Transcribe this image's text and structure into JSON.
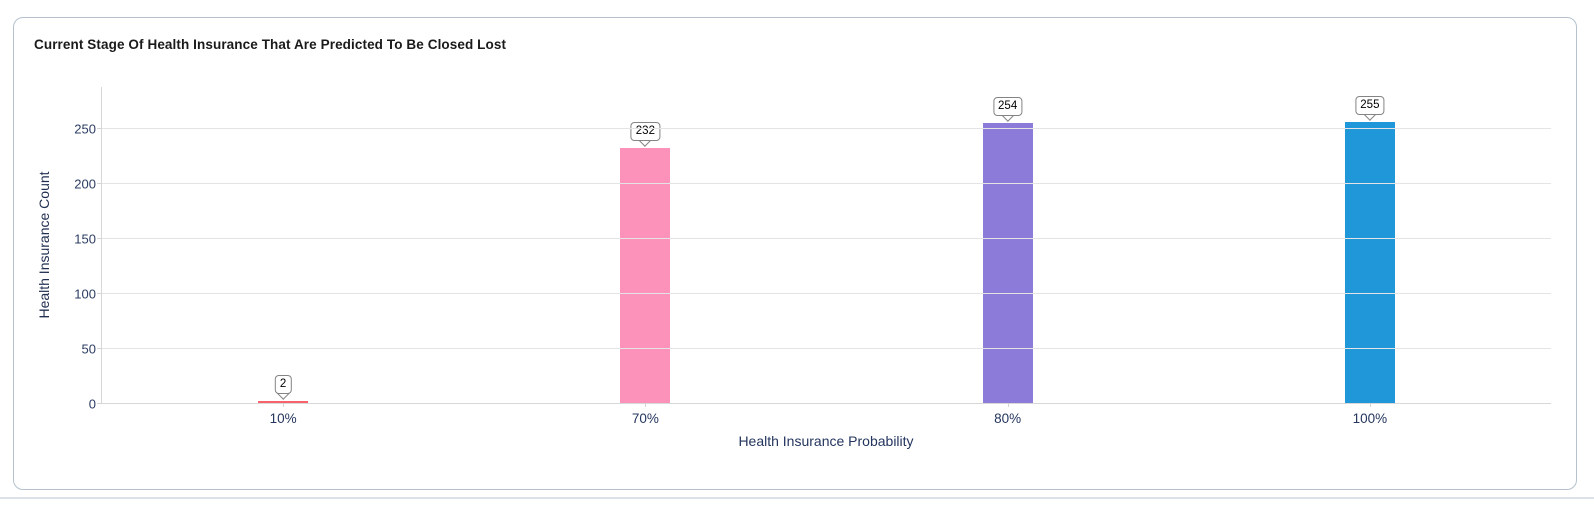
{
  "card": {
    "title": "Current Stage Of Health Insurance That Are Predicted To Be Closed Lost"
  },
  "chart_data": {
    "type": "bar",
    "title": "Current Stage Of Health Insurance That Are Predicted To Be Closed Lost",
    "categories": [
      "10%",
      "70%",
      "80%",
      "100%"
    ],
    "values": [
      2,
      232,
      254,
      255
    ],
    "data_labels": [
      "2",
      "232",
      "254",
      "255"
    ],
    "bar_colors": [
      "#f8626c",
      "#fc92b9",
      "#8c7bd9",
      "#1f97d8"
    ],
    "xlabel": "Health Insurance Probability",
    "ylabel": "Health Insurance Count",
    "yticks": [
      0,
      50,
      100,
      150,
      200,
      250
    ],
    "ylim": [
      0,
      288
    ],
    "grid": true,
    "legend": "none"
  },
  "colors": {
    "axis_text": "#2c3c63",
    "title_text": "#1a1a1a",
    "gridline": "#e4e4e4",
    "axis_line": "#d8d8d8",
    "card_border": "#b5c2cd",
    "callout_border": "#848484",
    "callout_bg": "#ffffff"
  }
}
